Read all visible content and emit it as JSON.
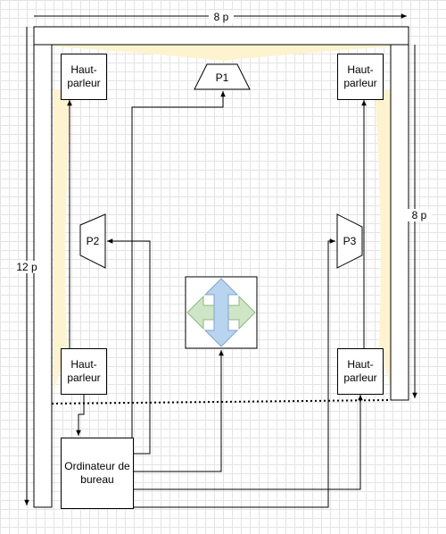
{
  "diagram": {
    "dimension_width": "8 p",
    "dimension_depth": "12 p",
    "dimension_side": "8 p",
    "speakers": {
      "top_left": "Haut-\nparleur",
      "top_right": "Haut-\nparleur",
      "bottom_left": "Haut-\nparleur",
      "bottom_right": "Haut-\nparleur"
    },
    "projectors": {
      "p1": "P1",
      "p2": "P2",
      "p3": "P3"
    },
    "computer": "Ordinateur de\nbureau",
    "colors": {
      "line": "#000000",
      "light_beam": "#fdf3cf",
      "arrow_vertical": "#b8d4ef",
      "arrow_horizontal": "#cfe6c6",
      "grid": "#e4e4e4"
    }
  }
}
